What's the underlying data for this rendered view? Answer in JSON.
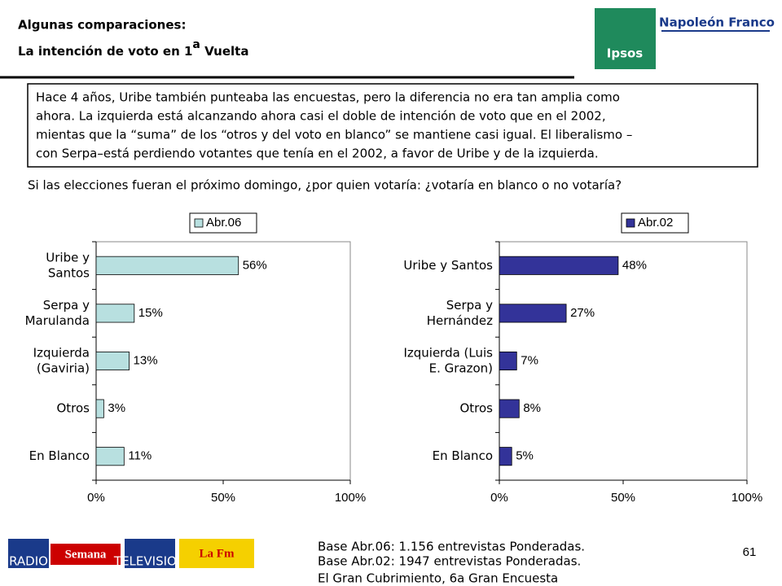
{
  "header": {
    "title_line1": "Algunas comparaciones:",
    "title_line2": "La intención de voto en 1",
    "title_sup": "a",
    "title_end": " Vuelta",
    "logo_brand": "Napoleón Franco",
    "logo_ipsos": "Ipsos"
  },
  "summary": [
    "Hace 4 años, Uribe también punteaba las encuestas, pero la diferencia no era tan amplia como",
    "ahora. La izquierda está alcanzando ahora casi el doble de intención de voto que en el 2002,",
    "mientas que la “suma” de los “otros y del voto en blanco” se mantiene casi igual. El liberalismo –",
    "con Serpa–está perdiendo votantes que tenía en el 2002, a favor de Uribe y de la izquierda."
  ],
  "question": "Si las elecciones fueran el próximo domingo, ¿por quien votaría: ¿votaría en blanco o no votaría?",
  "chart_data": [
    {
      "type": "hbar",
      "categories": [
        [
          "Uribe y",
          "Santos"
        ],
        [
          "Serpa y",
          "Marulanda"
        ],
        [
          "Izquierda",
          "(Gaviria)"
        ],
        [
          "Otros"
        ],
        [
          "En Blanco"
        ]
      ],
      "series": [
        {
          "name": "Abr.06",
          "color": "#b8e0e0",
          "values": [
            56,
            15,
            13,
            3,
            11
          ],
          "value_labels": [
            "56%",
            "15%",
            "13%",
            "3%",
            "11%"
          ]
        }
      ],
      "xlim": [
        0,
        100
      ],
      "xticks": [
        {
          "value": 0,
          "label": "0%"
        },
        {
          "value": 50,
          "label": "50%"
        },
        {
          "value": 100,
          "label": "100%"
        }
      ],
      "legend": "top"
    },
    {
      "type": "hbar",
      "categories": [
        [
          "Uribe y Santos"
        ],
        [
          "Serpa  y",
          "Hernández"
        ],
        [
          "Izquierda (Luis",
          "E. Grazon)"
        ],
        [
          "Otros"
        ],
        [
          "En Blanco"
        ]
      ],
      "series": [
        {
          "name": "Abr.02",
          "color": "#333399",
          "values": [
            48,
            27,
            7,
            8,
            5
          ],
          "value_labels": [
            "48%",
            "27%",
            "7%",
            "8%",
            "5%"
          ]
        }
      ],
      "xlim": [
        0,
        100
      ],
      "xticks": [
        {
          "value": 0,
          "label": "0%"
        },
        {
          "value": 50,
          "label": "50%"
        },
        {
          "value": 100,
          "label": "100%"
        }
      ],
      "legend": "top"
    }
  ],
  "footer": {
    "notes": [
      "Base Abr.06: 1.156 entrevistas Ponderadas.",
      "Base Abr.02: 1947 entrevistas Ponderadas."
    ],
    "page": "61",
    "source": "El Gran Cubrimiento, 6a Gran Encuesta",
    "logos": [
      "RADIO",
      "Semana",
      "TELEVISION",
      "La Fm"
    ]
  }
}
